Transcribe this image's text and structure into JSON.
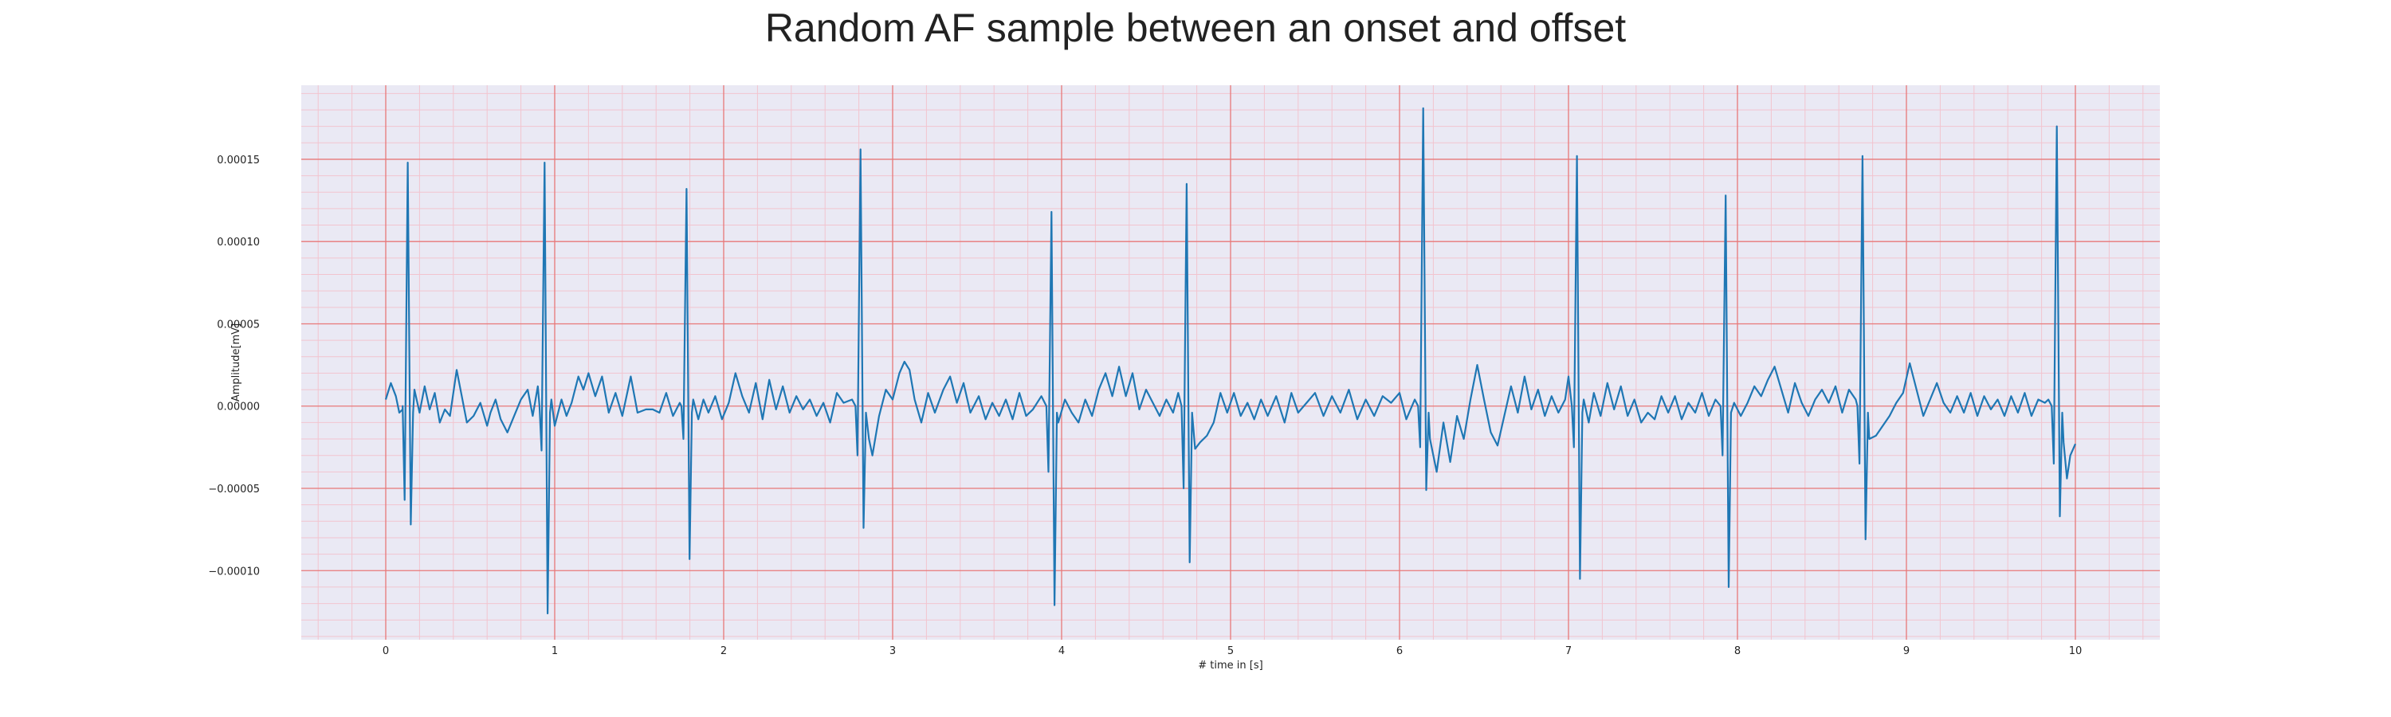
{
  "chart_data": {
    "type": "line",
    "title": "Random AF sample between an onset and offset",
    "xlabel": "# time in [s]",
    "ylabel": "Amplitude[mV]",
    "xlim": [
      -0.5,
      10.5
    ],
    "ylim": [
      -0.000142,
      0.000195
    ],
    "x_ticks": [
      0,
      1,
      2,
      3,
      4,
      5,
      6,
      7,
      8,
      9,
      10
    ],
    "x_tick_labels": [
      "0",
      "1",
      "2",
      "3",
      "4",
      "5",
      "6",
      "7",
      "8",
      "9",
      "10"
    ],
    "y_ticks": [
      -0.0001,
      -5e-05,
      0,
      5e-05,
      0.0001,
      0.00015
    ],
    "y_tick_labels": [
      "−0.00010",
      "−0.00005",
      "0.00000",
      "0.00005",
      "0.00010",
      "0.00015"
    ],
    "grid": {
      "major": true,
      "minor": true
    },
    "colors": {
      "background": "#eae9f4",
      "major_grid": "#e87878",
      "minor_grid": "#f2c4cf",
      "line": "#1f77b4"
    },
    "series": [
      {
        "peaks": [
          {
            "t": 0.13,
            "r": 0.000148,
            "q": -5.7e-05,
            "s": -7.2e-05
          },
          {
            "t": 0.94,
            "r": 0.000148,
            "q": -2.7e-05,
            "s": -0.000126
          },
          {
            "t": 1.78,
            "r": 0.000132,
            "q": -2e-05,
            "s": -9.3e-05
          },
          {
            "t": 2.81,
            "r": 0.000156,
            "q": -3e-05,
            "s": -7.4e-05
          },
          {
            "t": 3.94,
            "r": 0.000118,
            "q": -4e-05,
            "s": -0.000121
          },
          {
            "t": 4.74,
            "r": 0.000135,
            "q": -5e-05,
            "s": -9.5e-05
          },
          {
            "t": 6.14,
            "r": 0.000181,
            "q": -2.5e-05,
            "s": -5.1e-05
          },
          {
            "t": 7.05,
            "r": 0.000152,
            "q": -2.5e-05,
            "s": -0.000105
          },
          {
            "t": 7.93,
            "r": 0.000128,
            "q": -3e-05,
            "s": -0.00011
          },
          {
            "t": 8.74,
            "r": 0.000152,
            "q": -3.5e-05,
            "s": -8.1e-05
          },
          {
            "t": 9.89,
            "r": 0.00017,
            "q": -3.5e-05,
            "s": -6.7e-05
          }
        ],
        "baseline": [
          [
            0.0,
            4e-06
          ],
          [
            0.03,
            1.4e-05
          ],
          [
            0.06,
            6e-06
          ],
          [
            0.08,
            -4e-06
          ],
          [
            0.1,
            -2e-06
          ],
          [
            0.17,
            1e-05
          ],
          [
            0.2,
            -4e-06
          ],
          [
            0.23,
            1.2e-05
          ],
          [
            0.26,
            -2e-06
          ],
          [
            0.29,
            8e-06
          ],
          [
            0.32,
            -1e-05
          ],
          [
            0.35,
            -2e-06
          ],
          [
            0.38,
            -6e-06
          ],
          [
            0.42,
            2.2e-05
          ],
          [
            0.45,
            6e-06
          ],
          [
            0.48,
            -1e-05
          ],
          [
            0.52,
            -6e-06
          ],
          [
            0.56,
            2e-06
          ],
          [
            0.6,
            -1.2e-05
          ],
          [
            0.62,
            -4e-06
          ],
          [
            0.65,
            4e-06
          ],
          [
            0.68,
            -8e-06
          ],
          [
            0.72,
            -1.6e-05
          ],
          [
            0.76,
            -6e-06
          ],
          [
            0.8,
            4e-06
          ],
          [
            0.84,
            1e-05
          ],
          [
            0.87,
            -6e-06
          ],
          [
            0.9,
            1.2e-05
          ],
          [
            0.98,
            4e-06
          ],
          [
            1.0,
            -1.2e-05
          ],
          [
            1.04,
            4e-06
          ],
          [
            1.07,
            -6e-06
          ],
          [
            1.1,
            2e-06
          ],
          [
            1.14,
            1.8e-05
          ],
          [
            1.17,
            1e-05
          ],
          [
            1.2,
            2e-05
          ],
          [
            1.24,
            6e-06
          ],
          [
            1.28,
            1.8e-05
          ],
          [
            1.32,
            -4e-06
          ],
          [
            1.36,
            8e-06
          ],
          [
            1.4,
            -6e-06
          ],
          [
            1.45,
            1.8e-05
          ],
          [
            1.49,
            -4e-06
          ],
          [
            1.54,
            -2e-06
          ],
          [
            1.58,
            -2e-06
          ],
          [
            1.62,
            -4e-06
          ],
          [
            1.66,
            8e-06
          ],
          [
            1.7,
            -6e-06
          ],
          [
            1.74,
            2e-06
          ],
          [
            1.82,
            4e-06
          ],
          [
            1.85,
            -8e-06
          ],
          [
            1.88,
            4e-06
          ],
          [
            1.91,
            -4e-06
          ],
          [
            1.95,
            6e-06
          ],
          [
            1.99,
            -8e-06
          ],
          [
            2.03,
            2e-06
          ],
          [
            2.07,
            2e-05
          ],
          [
            2.11,
            6e-06
          ],
          [
            2.15,
            -4e-06
          ],
          [
            2.19,
            1.4e-05
          ],
          [
            2.23,
            -8e-06
          ],
          [
            2.27,
            1.6e-05
          ],
          [
            2.31,
            -2e-06
          ],
          [
            2.35,
            1.2e-05
          ],
          [
            2.39,
            -4e-06
          ],
          [
            2.43,
            6e-06
          ],
          [
            2.47,
            -2e-06
          ],
          [
            2.51,
            4e-06
          ],
          [
            2.55,
            -6e-06
          ],
          [
            2.59,
            2e-06
          ],
          [
            2.63,
            -1e-05
          ],
          [
            2.67,
            8e-06
          ],
          [
            2.71,
            2e-06
          ],
          [
            2.76,
            4e-06
          ],
          [
            2.86,
            -2e-05
          ],
          [
            2.88,
            -3e-05
          ],
          [
            2.92,
            -6e-06
          ],
          [
            2.96,
            1e-05
          ],
          [
            3.0,
            4e-06
          ],
          [
            3.04,
            2e-05
          ],
          [
            3.07,
            2.7e-05
          ],
          [
            3.1,
            2.2e-05
          ],
          [
            3.13,
            4e-06
          ],
          [
            3.17,
            -1e-05
          ],
          [
            3.21,
            8e-06
          ],
          [
            3.25,
            -4e-06
          ],
          [
            3.3,
            1e-05
          ],
          [
            3.34,
            1.8e-05
          ],
          [
            3.38,
            2e-06
          ],
          [
            3.42,
            1.4e-05
          ],
          [
            3.46,
            -4e-06
          ],
          [
            3.51,
            6e-06
          ],
          [
            3.55,
            -8e-06
          ],
          [
            3.59,
            2e-06
          ],
          [
            3.63,
            -6e-06
          ],
          [
            3.67,
            4e-06
          ],
          [
            3.71,
            -8e-06
          ],
          [
            3.75,
            8e-06
          ],
          [
            3.79,
            -6e-06
          ],
          [
            3.83,
            -2e-06
          ],
          [
            3.88,
            6e-06
          ],
          [
            3.98,
            -1e-05
          ],
          [
            4.02,
            4e-06
          ],
          [
            4.06,
            -4e-06
          ],
          [
            4.1,
            -1e-05
          ],
          [
            4.14,
            4e-06
          ],
          [
            4.18,
            -6e-06
          ],
          [
            4.22,
            1e-05
          ],
          [
            4.26,
            2e-05
          ],
          [
            4.3,
            6e-06
          ],
          [
            4.34,
            2.4e-05
          ],
          [
            4.38,
            6e-06
          ],
          [
            4.42,
            2e-05
          ],
          [
            4.46,
            -2e-06
          ],
          [
            4.5,
            1e-05
          ],
          [
            4.54,
            2e-06
          ],
          [
            4.58,
            -6e-06
          ],
          [
            4.62,
            4e-06
          ],
          [
            4.66,
            -4e-06
          ],
          [
            4.69,
            8e-06
          ],
          [
            4.79,
            -2.6e-05
          ],
          [
            4.82,
            -2.2e-05
          ],
          [
            4.86,
            -1.8e-05
          ],
          [
            4.9,
            -1e-05
          ],
          [
            4.94,
            8e-06
          ],
          [
            4.98,
            -4e-06
          ],
          [
            5.02,
            8e-06
          ],
          [
            5.06,
            -6e-06
          ],
          [
            5.1,
            2e-06
          ],
          [
            5.14,
            -8e-06
          ],
          [
            5.18,
            4e-06
          ],
          [
            5.22,
            -6e-06
          ],
          [
            5.27,
            6e-06
          ],
          [
            5.32,
            -1e-05
          ],
          [
            5.36,
            8e-06
          ],
          [
            5.4,
            -4e-06
          ],
          [
            5.45,
            2e-06
          ],
          [
            5.5,
            8e-06
          ],
          [
            5.55,
            -6e-06
          ],
          [
            5.6,
            6e-06
          ],
          [
            5.65,
            -4e-06
          ],
          [
            5.7,
            1e-05
          ],
          [
            5.75,
            -8e-06
          ],
          [
            5.8,
            4e-06
          ],
          [
            5.85,
            -6e-06
          ],
          [
            5.9,
            6e-06
          ],
          [
            5.95,
            2e-06
          ],
          [
            6.0,
            8e-06
          ],
          [
            6.04,
            -8e-06
          ],
          [
            6.09,
            4e-06
          ],
          [
            6.18,
            -2e-05
          ],
          [
            6.22,
            -4e-05
          ],
          [
            6.26,
            -1e-05
          ],
          [
            6.3,
            -3.4e-05
          ],
          [
            6.34,
            -6e-06
          ],
          [
            6.38,
            -2e-05
          ],
          [
            6.42,
            4e-06
          ],
          [
            6.46,
            2.5e-05
          ],
          [
            6.5,
            4e-06
          ],
          [
            6.54,
            -1.6e-05
          ],
          [
            6.58,
            -2.4e-05
          ],
          [
            6.62,
            -6e-06
          ],
          [
            6.66,
            1.2e-05
          ],
          [
            6.7,
            -4e-06
          ],
          [
            6.74,
            1.8e-05
          ],
          [
            6.78,
            -2e-06
          ],
          [
            6.82,
            1e-05
          ],
          [
            6.86,
            -6e-06
          ],
          [
            6.9,
            6e-06
          ],
          [
            6.94,
            -4e-06
          ],
          [
            6.98,
            4e-06
          ],
          [
            7.0,
            1.8e-05
          ],
          [
            7.09,
            4e-06
          ],
          [
            7.12,
            -1e-05
          ],
          [
            7.15,
            8e-06
          ],
          [
            7.19,
            -6e-06
          ],
          [
            7.23,
            1.4e-05
          ],
          [
            7.27,
            -2e-06
          ],
          [
            7.31,
            1.2e-05
          ],
          [
            7.35,
            -6e-06
          ],
          [
            7.39,
            4e-06
          ],
          [
            7.43,
            -1e-05
          ],
          [
            7.47,
            -4e-06
          ],
          [
            7.51,
            -8e-06
          ],
          [
            7.55,
            6e-06
          ],
          [
            7.59,
            -4e-06
          ],
          [
            7.63,
            6e-06
          ],
          [
            7.67,
            -8e-06
          ],
          [
            7.71,
            2e-06
          ],
          [
            7.75,
            -4e-06
          ],
          [
            7.79,
            8e-06
          ],
          [
            7.83,
            -6e-06
          ],
          [
            7.87,
            4e-06
          ],
          [
            7.98,
            2e-06
          ],
          [
            8.02,
            -6e-06
          ],
          [
            8.06,
            2e-06
          ],
          [
            8.1,
            1.2e-05
          ],
          [
            8.14,
            6e-06
          ],
          [
            8.18,
            1.6e-05
          ],
          [
            8.22,
            2.4e-05
          ],
          [
            8.26,
            1e-05
          ],
          [
            8.3,
            -4e-06
          ],
          [
            8.34,
            1.4e-05
          ],
          [
            8.38,
            2e-06
          ],
          [
            8.42,
            -6e-06
          ],
          [
            8.46,
            4e-06
          ],
          [
            8.5,
            1e-05
          ],
          [
            8.54,
            2e-06
          ],
          [
            8.58,
            1.2e-05
          ],
          [
            8.62,
            -4e-06
          ],
          [
            8.66,
            1e-05
          ],
          [
            8.7,
            4e-06
          ],
          [
            8.78,
            -2e-05
          ],
          [
            8.82,
            -1.8e-05
          ],
          [
            8.86,
            -1.2e-05
          ],
          [
            8.9,
            -6e-06
          ],
          [
            8.94,
            2e-06
          ],
          [
            8.98,
            8e-06
          ],
          [
            9.02,
            2.6e-05
          ],
          [
            9.06,
            1e-05
          ],
          [
            9.1,
            -6e-06
          ],
          [
            9.14,
            4e-06
          ],
          [
            9.18,
            1.4e-05
          ],
          [
            9.22,
            2e-06
          ],
          [
            9.26,
            -4e-06
          ],
          [
            9.3,
            6e-06
          ],
          [
            9.34,
            -4e-06
          ],
          [
            9.38,
            8e-06
          ],
          [
            9.42,
            -6e-06
          ],
          [
            9.46,
            6e-06
          ],
          [
            9.5,
            -2e-06
          ],
          [
            9.54,
            4e-06
          ],
          [
            9.58,
            -6e-06
          ],
          [
            9.62,
            6e-06
          ],
          [
            9.66,
            -4e-06
          ],
          [
            9.7,
            8e-06
          ],
          [
            9.74,
            -6e-06
          ],
          [
            9.78,
            4e-06
          ],
          [
            9.82,
            2e-06
          ],
          [
            9.84,
            4e-06
          ],
          [
            9.93,
            -2.2e-05
          ],
          [
            9.95,
            -4.4e-05
          ],
          [
            9.97,
            -3e-05
          ],
          [
            10.0,
            -2.3e-05
          ]
        ]
      }
    ]
  }
}
